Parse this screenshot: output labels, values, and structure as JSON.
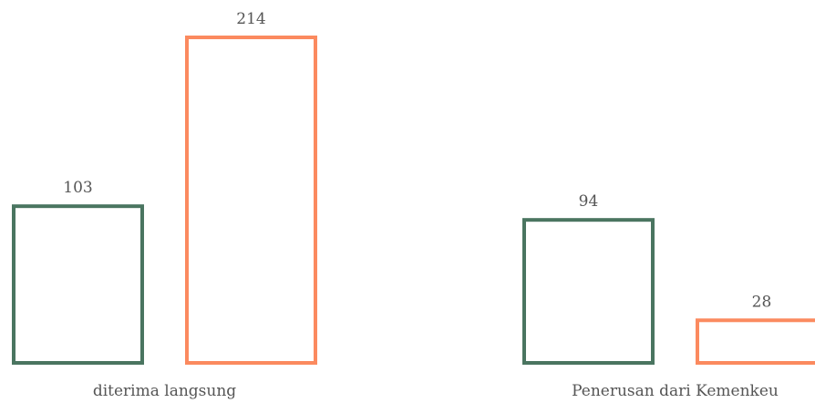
{
  "chart_data": {
    "type": "bar",
    "categories": [
      "diterima langsung",
      "Penerusan dari Kemenkeu"
    ],
    "series": [
      {
        "values": [
          103,
          94
        ],
        "color": "#4a7560"
      },
      {
        "values": [
          214,
          28
        ],
        "color": "#fb8a5f"
      }
    ],
    "ylim": [
      0,
      214
    ],
    "grid": false,
    "legend": "none",
    "bar_style": "outline"
  }
}
